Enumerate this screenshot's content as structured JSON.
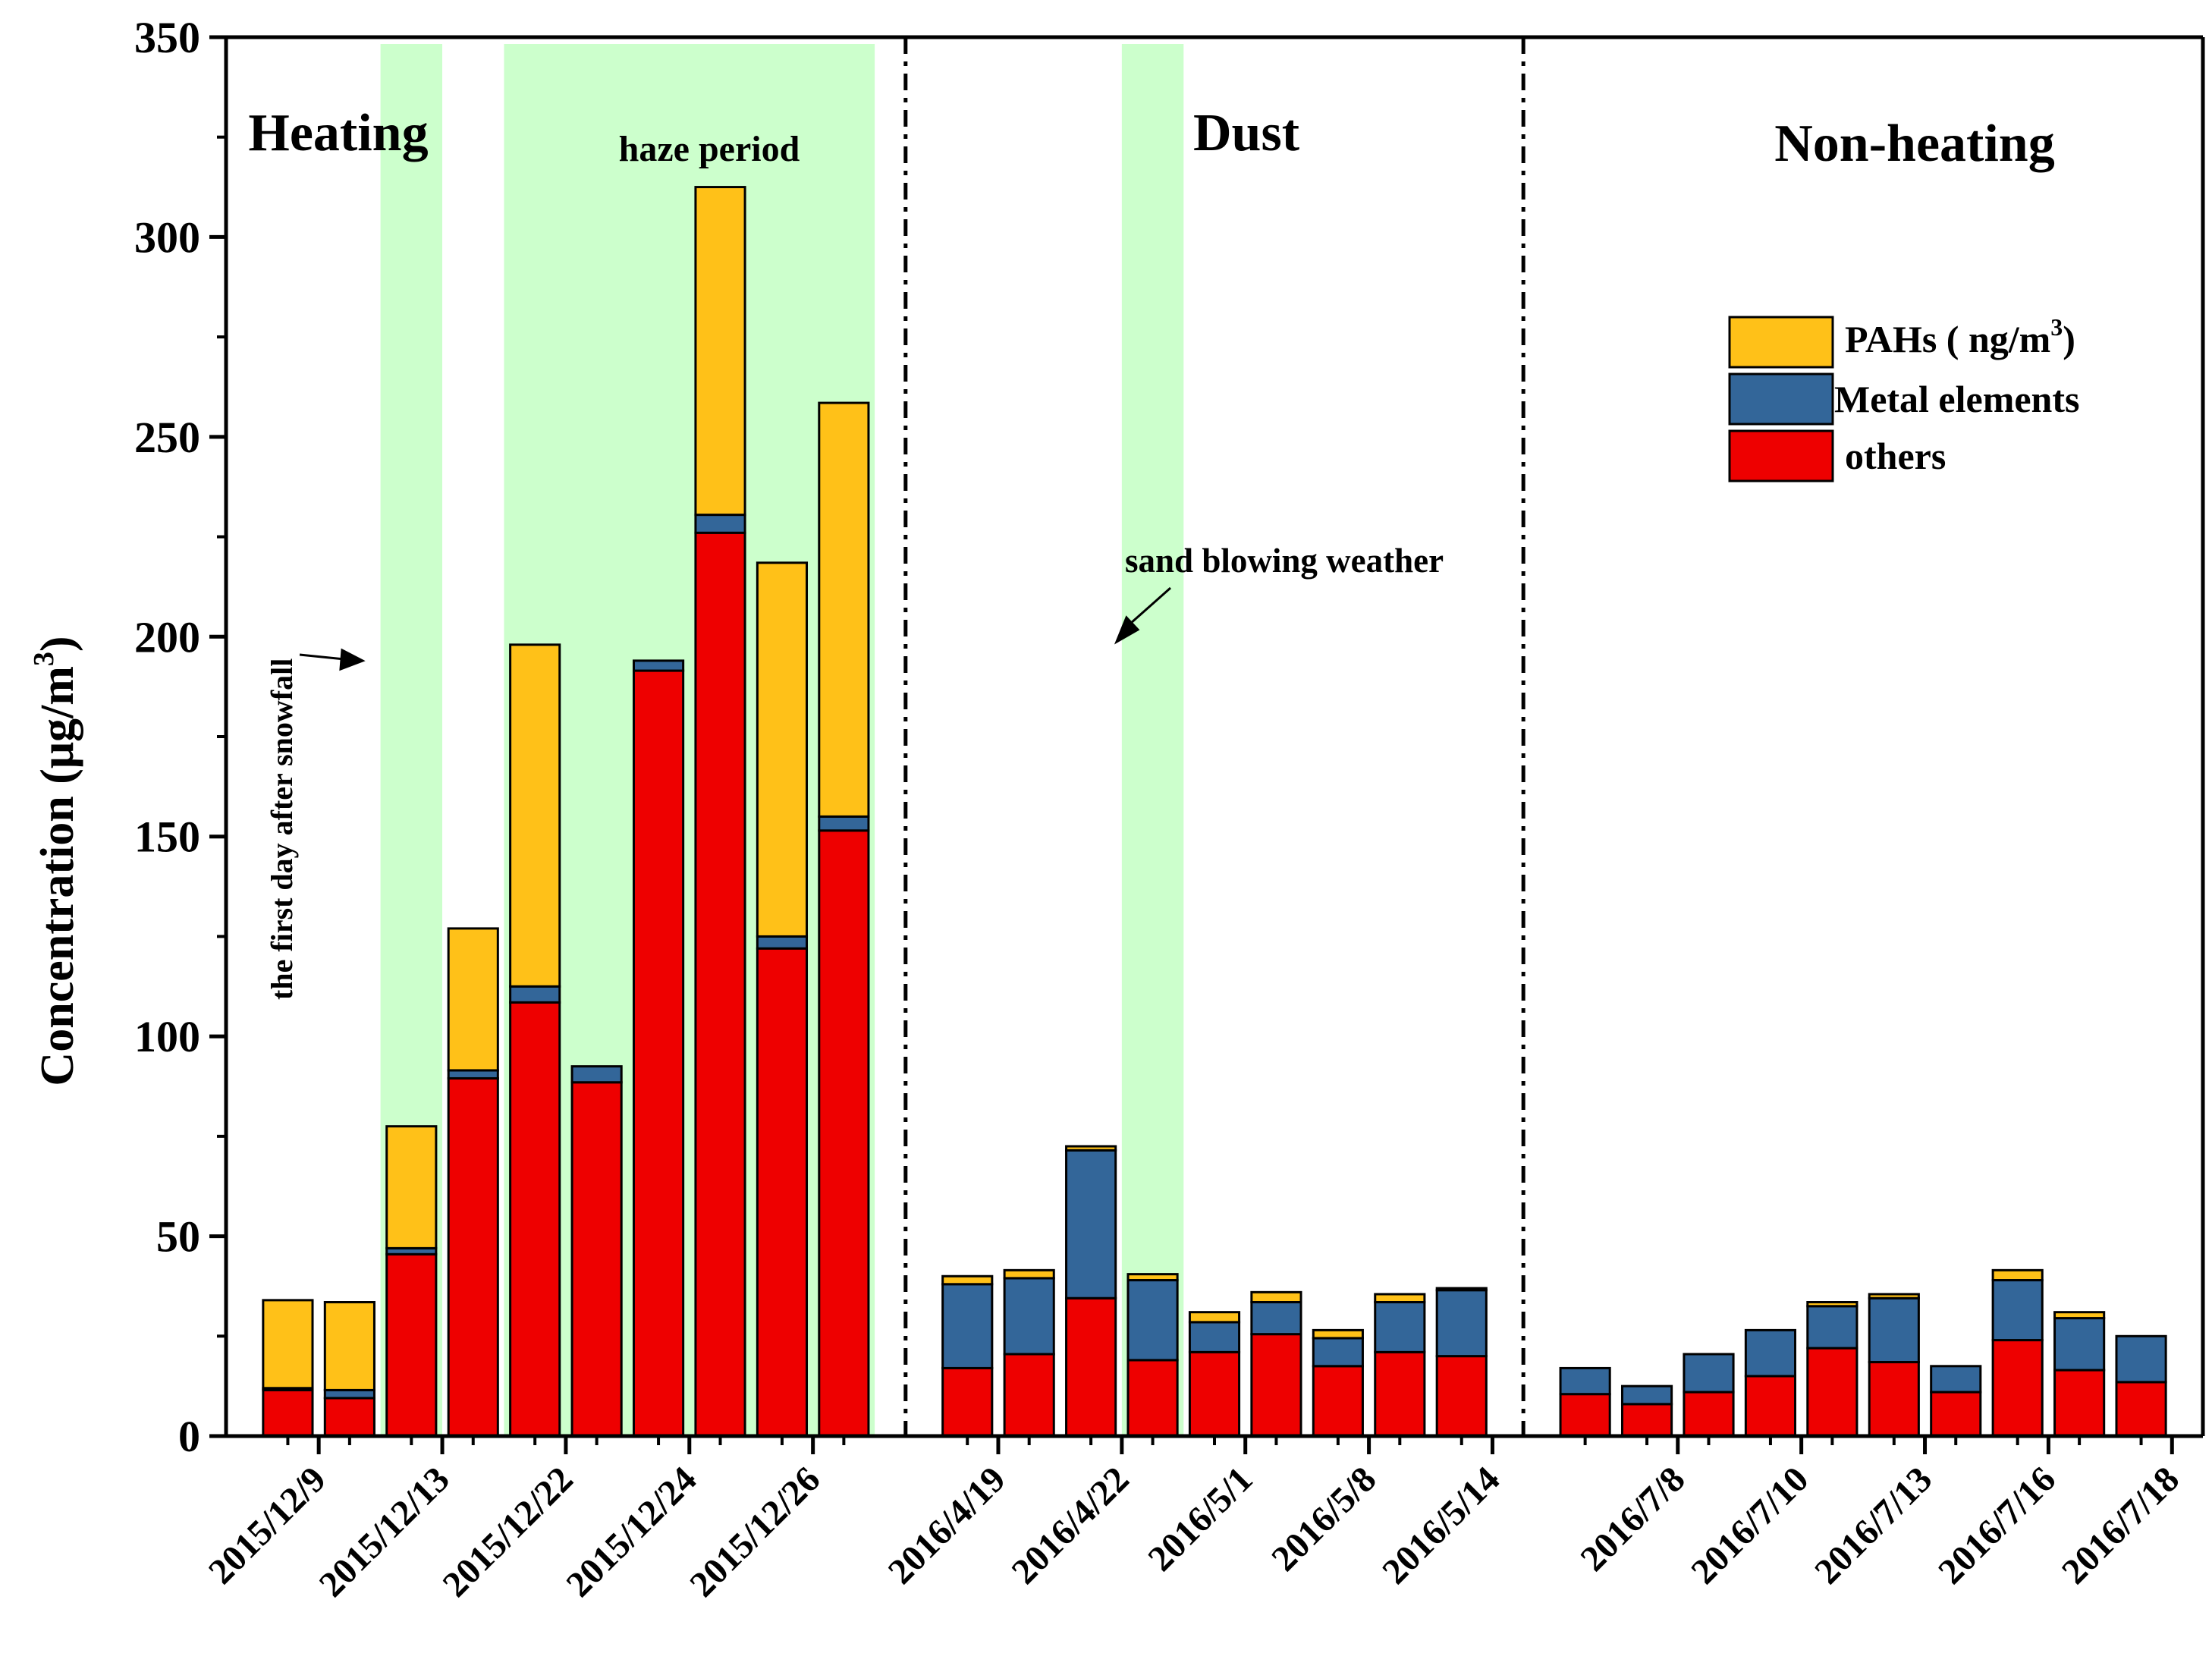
{
  "chart_data": {
    "type": "bar",
    "stacked": true,
    "ylabel": "Concentration (μg/m³)",
    "ylabel_main": "Concentration (μg/m",
    "ylabel_sup": "3",
    "ylabel_close": ")",
    "ylim": [
      0,
      350
    ],
    "yticks": [
      0,
      50,
      100,
      150,
      200,
      250,
      300,
      350
    ],
    "x_tick_labels": [
      {
        "after_bar": 2,
        "label": "2015/12/9"
      },
      {
        "after_bar": 4,
        "label": "2015/12/13"
      },
      {
        "after_bar": 6,
        "label": "2015/12/22"
      },
      {
        "after_bar": 8,
        "label": "2015/12/24"
      },
      {
        "after_bar": 10,
        "label": "2015/12/26"
      },
      {
        "after_bar": 12,
        "label": "2016/4/19"
      },
      {
        "after_bar": 14,
        "label": "2016/4/22"
      },
      {
        "after_bar": 16,
        "label": "2016/5/1"
      },
      {
        "after_bar": 18,
        "label": "2016/5/8"
      },
      {
        "after_bar": 20,
        "label": "2016/5/14"
      },
      {
        "after_bar": 22,
        "label": "2016/7/8"
      },
      {
        "after_bar": 24,
        "label": "2016/7/10"
      },
      {
        "after_bar": 26,
        "label": "2016/7/13"
      },
      {
        "after_bar": 28,
        "label": "2016/7/16"
      },
      {
        "after_bar": 30,
        "label": "2016/7/18"
      }
    ],
    "bar_groups": [
      10,
      9,
      10
    ],
    "series": [
      {
        "name": "others",
        "color": "#ee0000",
        "values": [
          11.5,
          9.5,
          45.5,
          89.5,
          108.5,
          88.5,
          191.5,
          226,
          122,
          151.5,
          17,
          20.5,
          34.5,
          19,
          21,
          25.5,
          17.5,
          21,
          20,
          10.5,
          8,
          11,
          15,
          22,
          18.5,
          11,
          24,
          16.5,
          13.5
        ]
      },
      {
        "name": "Metal elements",
        "color": "#336699",
        "values": [
          0.5,
          2,
          1.5,
          2,
          4,
          4,
          2.5,
          4.5,
          3,
          3.5,
          21,
          19,
          37,
          20,
          7.5,
          8,
          7,
          12.5,
          16.5,
          6.5,
          4.5,
          9.5,
          11.5,
          10.5,
          16,
          6.5,
          15,
          13,
          11.5
        ]
      },
      {
        "name": "PAHs ( ng/m³)",
        "color": "#ffc118",
        "values": [
          22,
          22,
          30.5,
          35.5,
          85.5,
          0,
          0,
          82,
          93.5,
          103.5,
          2,
          2,
          1,
          1.5,
          2.5,
          2.5,
          2,
          2,
          0.5,
          0,
          0,
          0,
          0,
          1,
          1,
          0,
          2.5,
          1.5,
          0
        ]
      }
    ],
    "legend": [
      {
        "label": "PAHs ( ng/m",
        "sup": "3",
        "close": ")",
        "color": "#ffc118"
      },
      {
        "label": "Metal elements",
        "color": "#336699"
      },
      {
        "label": "others",
        "color": "#ee0000"
      }
    ],
    "legend_placement": "upper-right",
    "period_labels": [
      "Heating",
      "Dust",
      "Non-heating"
    ],
    "annotations": {
      "haze": "haze period",
      "sand": "sand blowing weather",
      "snow": "the first day after snowfall"
    },
    "shaded_spans": [
      {
        "from_bar": 3,
        "to_bar": 3
      },
      {
        "from_bar": 5,
        "to_bar": 10
      },
      {
        "from_bar": 14,
        "to_bar": 14
      }
    ],
    "grid": false,
    "colors": {
      "shade": "#ccffcc",
      "axis": "#000000"
    }
  }
}
